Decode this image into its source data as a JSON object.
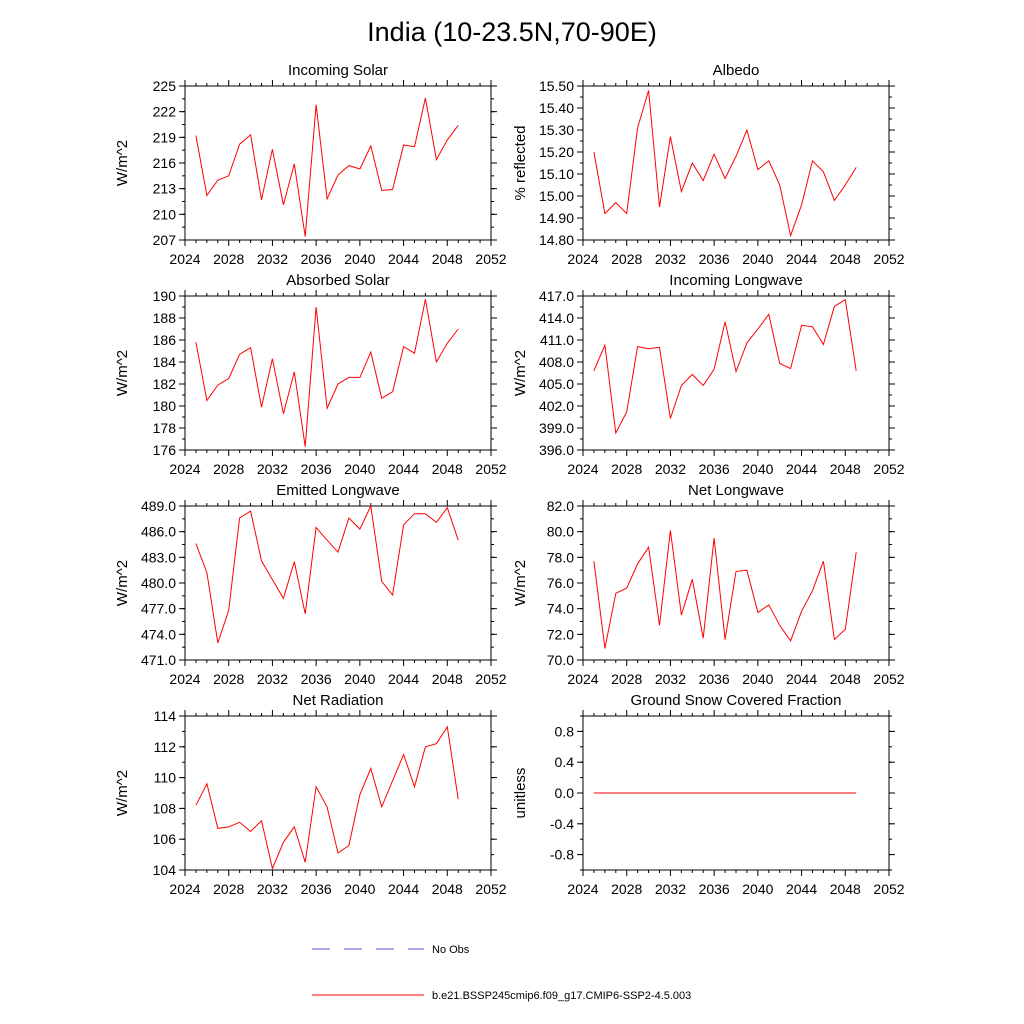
{
  "figure": {
    "title": "India (10-23.5N,70-90E)",
    "line_color": "#ff0000",
    "obs_color": "#5555cc"
  },
  "legend": {
    "entries": [
      {
        "label": "No Obs",
        "style": "dashed",
        "color": "#5555cc"
      },
      {
        "label": "b.e21.BSSP245cmip6.f09_g17.CMIP6-SSP2-4.5.003",
        "style": "solid",
        "color": "#ff0000"
      }
    ]
  },
  "chart_data": [
    {
      "type": "line",
      "title": "Incoming Solar",
      "ylabel": "W/m^2",
      "xlim": [
        2024,
        2052
      ],
      "xticks": [
        2024,
        2028,
        2032,
        2036,
        2040,
        2044,
        2048,
        2052
      ],
      "ylim": [
        207,
        225
      ],
      "yticks": [
        207,
        210,
        213,
        216,
        219,
        222,
        225
      ],
      "ytick_labels": [
        "207",
        "210",
        "213",
        "216",
        "219",
        "222",
        "225"
      ],
      "x": [
        2025,
        2026,
        2027,
        2028,
        2029,
        2030,
        2031,
        2032,
        2033,
        2034,
        2035,
        2036,
        2037,
        2038,
        2039,
        2040,
        2041,
        2042,
        2043,
        2044,
        2045,
        2046,
        2047,
        2048,
        2049
      ],
      "values": [
        219.2,
        212.2,
        214.0,
        214.5,
        218.2,
        219.3,
        211.7,
        217.6,
        211.1,
        215.9,
        207.4,
        222.8,
        211.8,
        214.6,
        215.7,
        215.3,
        218.0,
        212.8,
        212.9,
        218.1,
        217.9,
        223.6,
        216.4,
        218.7,
        220.4
      ]
    },
    {
      "type": "line",
      "title": "Albedo",
      "ylabel": "% reflected",
      "xlim": [
        2024,
        2052
      ],
      "xticks": [
        2024,
        2028,
        2032,
        2036,
        2040,
        2044,
        2048,
        2052
      ],
      "ylim": [
        14.8,
        15.5
      ],
      "yticks": [
        14.8,
        14.9,
        15.0,
        15.1,
        15.2,
        15.3,
        15.4,
        15.5
      ],
      "ytick_labels": [
        "14.80",
        "14.90",
        "15.00",
        "15.10",
        "15.20",
        "15.30",
        "15.40",
        "15.50"
      ],
      "x": [
        2025,
        2026,
        2027,
        2028,
        2029,
        2030,
        2031,
        2032,
        2033,
        2034,
        2035,
        2036,
        2037,
        2038,
        2039,
        2040,
        2041,
        2042,
        2043,
        2044,
        2045,
        2046,
        2047,
        2048,
        2049
      ],
      "values": [
        15.2,
        14.92,
        14.97,
        14.92,
        15.31,
        15.48,
        14.95,
        15.27,
        15.02,
        15.15,
        15.07,
        15.19,
        15.08,
        15.18,
        15.3,
        15.12,
        15.16,
        15.05,
        14.82,
        14.96,
        15.16,
        15.11,
        14.98,
        15.05,
        15.13
      ]
    },
    {
      "type": "line",
      "title": "Absorbed Solar",
      "ylabel": "W/m^2",
      "xlim": [
        2024,
        2052
      ],
      "xticks": [
        2024,
        2028,
        2032,
        2036,
        2040,
        2044,
        2048,
        2052
      ],
      "ylim": [
        176,
        190
      ],
      "yticks": [
        176,
        178,
        180,
        182,
        184,
        186,
        188,
        190
      ],
      "ytick_labels": [
        "176",
        "178",
        "180",
        "182",
        "184",
        "186",
        "188",
        "190"
      ],
      "x": [
        2025,
        2026,
        2027,
        2028,
        2029,
        2030,
        2031,
        2032,
        2033,
        2034,
        2035,
        2036,
        2037,
        2038,
        2039,
        2040,
        2041,
        2042,
        2043,
        2044,
        2045,
        2046,
        2047,
        2048,
        2049
      ],
      "values": [
        185.8,
        180.5,
        181.9,
        182.5,
        184.7,
        185.3,
        179.9,
        184.3,
        179.3,
        183.1,
        176.3,
        189.0,
        179.8,
        182.0,
        182.6,
        182.6,
        184.9,
        180.7,
        181.3,
        185.4,
        184.8,
        189.7,
        184.0,
        185.7,
        187.0
      ]
    },
    {
      "type": "line",
      "title": "Incoming Longwave",
      "ylabel": "W/m^2",
      "xlim": [
        2024,
        2052
      ],
      "xticks": [
        2024,
        2028,
        2032,
        2036,
        2040,
        2044,
        2048,
        2052
      ],
      "ylim": [
        396,
        417
      ],
      "yticks": [
        396,
        399,
        402,
        405,
        408,
        411,
        414,
        417
      ],
      "ytick_labels": [
        "396.0",
        "399.0",
        "402.0",
        "405.0",
        "408.0",
        "411.0",
        "414.0",
        "417.0"
      ],
      "x": [
        2025,
        2026,
        2027,
        2028,
        2029,
        2030,
        2031,
        2032,
        2033,
        2034,
        2035,
        2036,
        2037,
        2038,
        2039,
        2040,
        2041,
        2042,
        2043,
        2044,
        2045,
        2046,
        2047,
        2048,
        2049
      ],
      "values": [
        406.8,
        410.3,
        398.3,
        401.2,
        410.1,
        409.8,
        410.0,
        400.3,
        404.8,
        406.3,
        404.8,
        407.0,
        413.5,
        406.7,
        410.6,
        412.5,
        414.5,
        407.8,
        407.1,
        413.0,
        412.8,
        410.4,
        415.6,
        416.5,
        406.8
      ]
    },
    {
      "type": "line",
      "title": "Emitted Longwave",
      "ylabel": "W/m^2",
      "xlim": [
        2024,
        2052
      ],
      "xticks": [
        2024,
        2028,
        2032,
        2036,
        2040,
        2044,
        2048,
        2052
      ],
      "ylim": [
        471,
        489
      ],
      "yticks": [
        471,
        474,
        477,
        480,
        483,
        486,
        489
      ],
      "ytick_labels": [
        "471.0",
        "474.0",
        "477.0",
        "480.0",
        "483.0",
        "486.0",
        "489.0"
      ],
      "x": [
        2025,
        2026,
        2027,
        2028,
        2029,
        2030,
        2031,
        2032,
        2033,
        2034,
        2035,
        2036,
        2037,
        2038,
        2039,
        2040,
        2041,
        2042,
        2043,
        2044,
        2045,
        2046,
        2047,
        2048,
        2049
      ],
      "values": [
        484.6,
        481.2,
        473.0,
        476.8,
        487.6,
        488.4,
        482.6,
        480.4,
        478.2,
        482.5,
        476.4,
        486.5,
        485.0,
        483.6,
        487.6,
        486.3,
        489.0,
        480.2,
        478.6,
        486.8,
        488.1,
        488.1,
        487.1,
        488.8,
        485.0
      ]
    },
    {
      "type": "line",
      "title": "Net Longwave",
      "ylabel": "W/m^2",
      "xlim": [
        2024,
        2052
      ],
      "xticks": [
        2024,
        2028,
        2032,
        2036,
        2040,
        2044,
        2048,
        2052
      ],
      "ylim": [
        70,
        82
      ],
      "yticks": [
        70,
        72,
        74,
        76,
        78,
        80,
        82
      ],
      "ytick_labels": [
        "70.0",
        "72.0",
        "74.0",
        "76.0",
        "78.0",
        "80.0",
        "82.0"
      ],
      "x": [
        2025,
        2026,
        2027,
        2028,
        2029,
        2030,
        2031,
        2032,
        2033,
        2034,
        2035,
        2036,
        2037,
        2038,
        2039,
        2040,
        2041,
        2042,
        2043,
        2044,
        2045,
        2046,
        2047,
        2048,
        2049
      ],
      "values": [
        77.7,
        70.9,
        75.2,
        75.6,
        77.5,
        78.8,
        72.7,
        80.1,
        73.5,
        76.3,
        71.7,
        79.5,
        71.6,
        76.9,
        77.0,
        73.7,
        74.3,
        72.7,
        71.5,
        73.8,
        75.4,
        77.7,
        71.6,
        72.4,
        78.4
      ]
    },
    {
      "type": "line",
      "title": "Net Radiation",
      "ylabel": "W/m^2",
      "xlim": [
        2024,
        2052
      ],
      "xticks": [
        2024,
        2028,
        2032,
        2036,
        2040,
        2044,
        2048,
        2052
      ],
      "ylim": [
        104,
        114
      ],
      "yticks": [
        104,
        106,
        108,
        110,
        112,
        114
      ],
      "ytick_labels": [
        "104",
        "106",
        "108",
        "110",
        "112",
        "114"
      ],
      "x": [
        2025,
        2026,
        2027,
        2028,
        2029,
        2030,
        2031,
        2032,
        2033,
        2034,
        2035,
        2036,
        2037,
        2038,
        2039,
        2040,
        2041,
        2042,
        2043,
        2044,
        2045,
        2046,
        2047,
        2048,
        2049
      ],
      "values": [
        108.2,
        109.6,
        106.7,
        106.8,
        107.1,
        106.5,
        107.2,
        104.1,
        105.8,
        106.8,
        104.5,
        109.4,
        108.1,
        105.1,
        105.6,
        108.9,
        110.6,
        108.1,
        109.8,
        111.5,
        109.4,
        112.0,
        112.2,
        113.3,
        108.6
      ]
    },
    {
      "type": "line",
      "title": "Ground Snow Covered Fraction",
      "ylabel": "unitless",
      "xlim": [
        2024,
        2052
      ],
      "xticks": [
        2024,
        2028,
        2032,
        2036,
        2040,
        2044,
        2048,
        2052
      ],
      "ylim": [
        -1.0,
        1.0
      ],
      "yticks": [
        -0.8,
        -0.4,
        0.0,
        0.4,
        0.8
      ],
      "ytick_labels": [
        "-0.8",
        "-0.4",
        "0.0",
        "0.4",
        "0.8"
      ],
      "x": [
        2025,
        2049
      ],
      "values": [
        0.0,
        0.0
      ]
    }
  ]
}
